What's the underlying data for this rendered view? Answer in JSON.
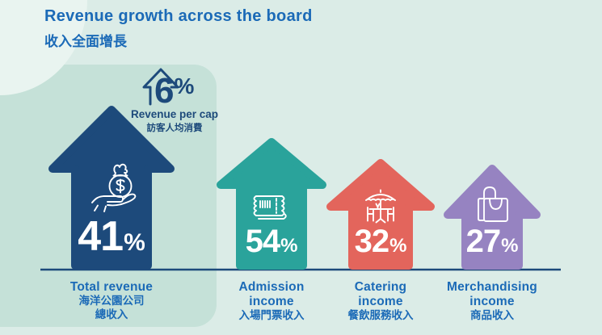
{
  "header": {
    "title_en": "Revenue growth across the board",
    "title_zh": "收入全面增長"
  },
  "colors": {
    "background": "#dbece7",
    "panel": "#c5e1d8",
    "blob": "#e9f4f0",
    "navy": "#1d4a7b",
    "blue_text": "#1b6ab7",
    "baseline": "#1d4a7b",
    "percent_text": "#ffffff"
  },
  "chart_data": {
    "type": "bar",
    "title": "Revenue growth across the board",
    "title_zh": "收入全面增長",
    "categories": [
      "Total revenue",
      "Admission income",
      "Catering income",
      "Merchandising income"
    ],
    "values": [
      41,
      54,
      32,
      27
    ],
    "unit": "%",
    "legend_position": "none",
    "grid": false,
    "style": "upward arrow pictograms on a shared baseline; first arrow tallest (emphasized total), heights not proportional to values",
    "items": [
      {
        "value": "41",
        "unit": "%",
        "color": "#1d4a7b",
        "icon": "money-bag-in-hand-icon",
        "label_en": [
          "Total revenue"
        ],
        "label_zh": [
          "海洋公園公司",
          "總收入"
        ]
      },
      {
        "value": "54",
        "unit": "%",
        "color": "#2aa39b",
        "icon": "admission-ticket-icon",
        "label_en": [
          "Admission",
          "income"
        ],
        "label_zh": [
          "入場門票收入"
        ]
      },
      {
        "value": "32",
        "unit": "%",
        "color": "#e3655c",
        "icon": "outdoor-dining-icon",
        "label_en": [
          "Catering",
          "income"
        ],
        "label_zh": [
          "餐飲服務收入"
        ]
      },
      {
        "value": "27",
        "unit": "%",
        "color": "#9683c1",
        "icon": "shopping-bags-icon",
        "label_en": [
          "Merchandising",
          "income"
        ],
        "label_zh": [
          "商品收入"
        ]
      }
    ],
    "per_cap": {
      "value": "6",
      "unit": "%",
      "caption_en": "Revenue per cap",
      "caption_zh": "訪客人均消費",
      "color": "#1d4a7b"
    }
  }
}
